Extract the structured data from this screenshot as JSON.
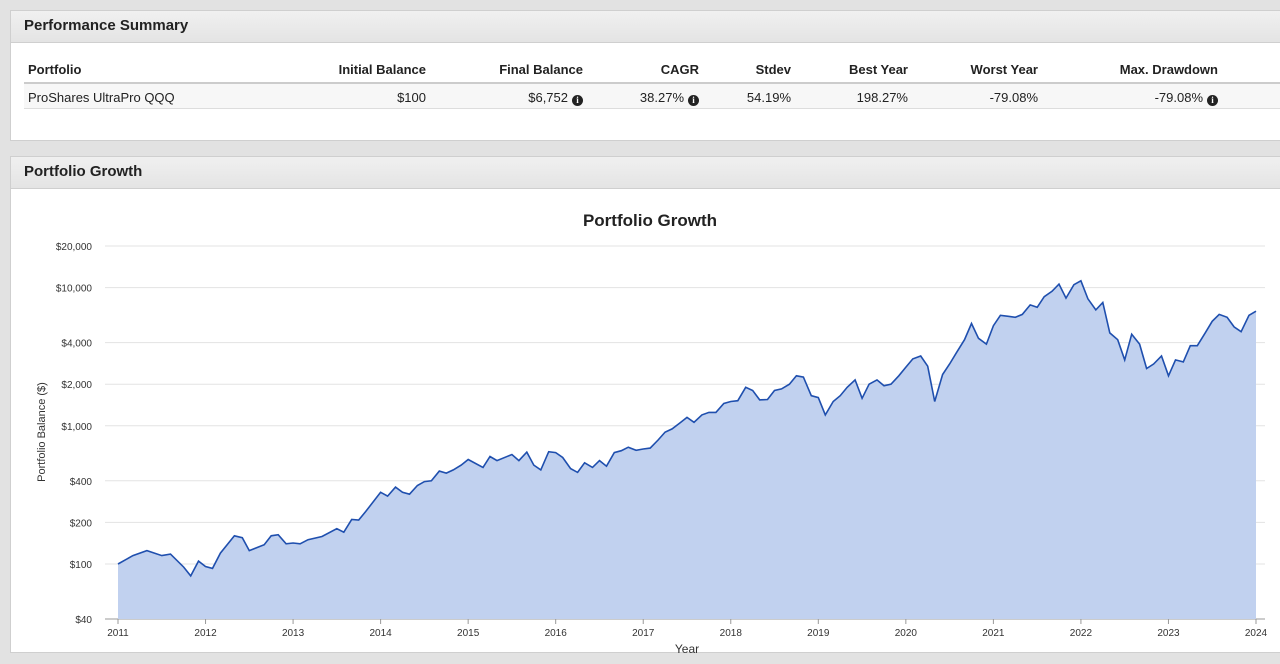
{
  "performance_summary": {
    "title": "Performance Summary",
    "columns": [
      "Portfolio",
      "Initial Balance",
      "Final Balance",
      "CAGR",
      "Stdev",
      "Best Year",
      "Worst Year",
      "Max. Drawdown"
    ],
    "rows": [
      [
        "ProShares UltraPro QQQ",
        "$100",
        "$6,752",
        "38.27%",
        "54.19%",
        "198.27%",
        "-79.08%",
        "-79.08%"
      ]
    ]
  },
  "growth_panel": {
    "title": "Portfolio Growth"
  },
  "chart_data": {
    "type": "area",
    "title": "Portfolio Growth",
    "x_label": "Year",
    "y_label": "Portfolio Balance ($)",
    "yscale": "log",
    "grid": true,
    "xlim": [
      2011,
      2024
    ],
    "xticks": [
      2011,
      2012,
      2013,
      2014,
      2015,
      2016,
      2017,
      2018,
      2019,
      2020,
      2021,
      2022,
      2023,
      2024
    ],
    "ylim": [
      40,
      20000
    ],
    "yticks": [
      {
        "value": 40,
        "label": "$40"
      },
      {
        "value": 100,
        "label": "$100"
      },
      {
        "value": 200,
        "label": "$200"
      },
      {
        "value": 400,
        "label": "$400"
      },
      {
        "value": 1000,
        "label": "$1,000"
      },
      {
        "value": 2000,
        "label": "$2,000"
      },
      {
        "value": 4000,
        "label": "$4,000"
      },
      {
        "value": 10000,
        "label": "$10,000"
      },
      {
        "value": 20000,
        "label": "$20,000"
      }
    ],
    "series": [
      {
        "name": "ProShares UltraPro QQQ",
        "color": "#1f4fae",
        "fill": "#c1d1ef",
        "x": [
          2011,
          2011.17,
          2011.33,
          2011.5,
          2011.6,
          2011.75,
          2011.83,
          2011.92,
          2012,
          2012.08,
          2012.17,
          2012.33,
          2012.42,
          2012.5,
          2012.67,
          2012.75,
          2012.83,
          2012.92,
          2013,
          2013.08,
          2013.17,
          2013.33,
          2013.5,
          2013.58,
          2013.67,
          2013.75,
          2013.83,
          2014,
          2014.08,
          2014.17,
          2014.25,
          2014.33,
          2014.42,
          2014.5,
          2014.58,
          2014.67,
          2014.75,
          2014.83,
          2014.92,
          2015,
          2015.17,
          2015.25,
          2015.33,
          2015.5,
          2015.58,
          2015.67,
          2015.75,
          2015.83,
          2015.92,
          2016,
          2016.08,
          2016.17,
          2016.25,
          2016.33,
          2016.42,
          2016.5,
          2016.58,
          2016.67,
          2016.75,
          2016.83,
          2016.92,
          2017,
          2017.08,
          2017.17,
          2017.25,
          2017.33,
          2017.42,
          2017.5,
          2017.58,
          2017.67,
          2017.75,
          2017.83,
          2017.92,
          2018,
          2018.08,
          2018.17,
          2018.25,
          2018.33,
          2018.42,
          2018.5,
          2018.58,
          2018.67,
          2018.75,
          2018.83,
          2018.92,
          2019,
          2019.08,
          2019.17,
          2019.25,
          2019.33,
          2019.42,
          2019.5,
          2019.58,
          2019.67,
          2019.75,
          2019.83,
          2019.92,
          2020,
          2020.08,
          2020.17,
          2020.25,
          2020.33,
          2020.42,
          2020.5,
          2020.58,
          2020.67,
          2020.75,
          2020.83,
          2020.92,
          2021,
          2021.08,
          2021.17,
          2021.25,
          2021.33,
          2021.42,
          2021.5,
          2021.58,
          2021.67,
          2021.75,
          2021.83,
          2021.92,
          2022,
          2022.08,
          2022.17,
          2022.25,
          2022.33,
          2022.42,
          2022.5,
          2022.58,
          2022.67,
          2022.75,
          2022.83,
          2022.92,
          2023,
          2023.08,
          2023.17,
          2023.25,
          2023.33,
          2023.42,
          2023.5,
          2023.58,
          2023.67,
          2023.75,
          2023.83,
          2023.92,
          2024
        ],
        "values": [
          100,
          115,
          125,
          115,
          118,
          95,
          82,
          105,
          96,
          93,
          120,
          160,
          155,
          125,
          138,
          160,
          163,
          140,
          142,
          140,
          150,
          158,
          180,
          170,
          210,
          208,
          240,
          330,
          310,
          360,
          330,
          320,
          370,
          395,
          400,
          470,
          455,
          480,
          520,
          570,
          500,
          600,
          560,
          620,
          560,
          645,
          520,
          480,
          650,
          640,
          590,
          490,
          460,
          540,
          500,
          560,
          510,
          640,
          660,
          700,
          665,
          680,
          690,
          790,
          900,
          950,
          1050,
          1150,
          1060,
          1200,
          1250,
          1250,
          1450,
          1500,
          1520,
          1900,
          1800,
          1540,
          1550,
          1800,
          1850,
          2000,
          2300,
          2250,
          1650,
          1600,
          1200,
          1500,
          1650,
          1900,
          2150,
          1580,
          2000,
          2150,
          1950,
          2000,
          2300,
          2650,
          3050,
          3200,
          2700,
          1500,
          2350,
          2800,
          3400,
          4200,
          5500,
          4300,
          3900,
          5300,
          6300,
          6200,
          6100,
          6400,
          7500,
          7200,
          8600,
          9400,
          10600,
          8400,
          10500,
          11200,
          8300,
          6900,
          7800,
          4700,
          4200,
          3000,
          4600,
          3900,
          2600,
          2800,
          3200,
          2300,
          3000,
          2900,
          3800,
          3800,
          4700,
          5700,
          6400,
          6100,
          5200,
          4800,
          6300,
          6752
        ]
      }
    ]
  }
}
